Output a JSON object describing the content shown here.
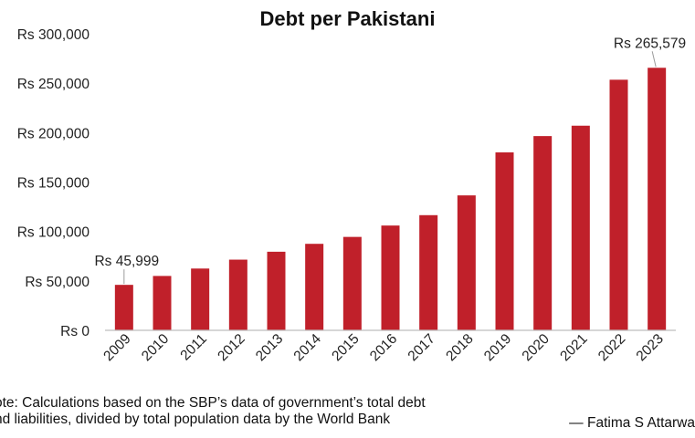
{
  "chart_data": {
    "type": "bar",
    "title": "Debt per Pakistani",
    "xlabel": "",
    "ylabel": "",
    "categories": [
      "2009",
      "2010",
      "2011",
      "2012",
      "2013",
      "2014",
      "2015",
      "2016",
      "2017",
      "2018",
      "2019",
      "2020",
      "2021",
      "2022",
      "2023"
    ],
    "values": [
      45999,
      55000,
      62500,
      71500,
      79500,
      87500,
      94500,
      106000,
      116500,
      136500,
      180000,
      196500,
      207000,
      253500,
      265579
    ],
    "ylim": [
      0,
      300000
    ],
    "yticks": [
      0,
      50000,
      100000,
      150000,
      200000,
      250000,
      300000
    ],
    "ytick_labels": [
      "Rs 0",
      "Rs 50,000",
      "Rs 100,000",
      "Rs 150,000",
      "Rs 200,000",
      "Rs 250,000",
      "Rs 300,000"
    ],
    "grid": false,
    "bar_color": "#c0202a",
    "annotations": [
      {
        "category": "2009",
        "text": "Rs 45,999"
      },
      {
        "category": "2023",
        "text": "Rs 265,579"
      }
    ]
  },
  "footer": {
    "note_line1": "ote: Calculations based on the SBP’s data of government’s total debt",
    "note_line2": "nd liabilities, divided by total population data by the World Bank",
    "credit": "— Fatima S Attarwa"
  }
}
